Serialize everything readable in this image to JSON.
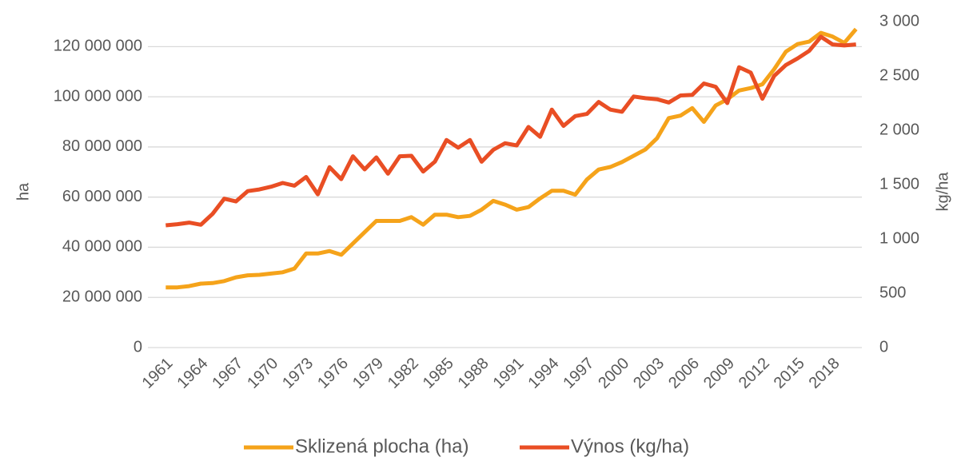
{
  "chart_data": {
    "type": "line",
    "y_label": "ha",
    "y2_label": "kg/ha",
    "categories": [
      "1961",
      null,
      null,
      "1964",
      null,
      null,
      "1967",
      null,
      null,
      "1970",
      null,
      null,
      "1973",
      null,
      null,
      "1976",
      null,
      null,
      "1979",
      null,
      null,
      "1982",
      null,
      null,
      "1985",
      null,
      null,
      "1988",
      null,
      null,
      "1991",
      null,
      null,
      "1994",
      null,
      null,
      "1997",
      null,
      null,
      "2000",
      null,
      null,
      "2003",
      null,
      null,
      "2006",
      null,
      null,
      "2009",
      null,
      null,
      "2012",
      null,
      null,
      "2015",
      null,
      null,
      "2018",
      null,
      null
    ],
    "series": [
      {
        "name": "Sklizená plocha (ha)",
        "color": "#f5a31a",
        "axis": "y",
        "values": [
          24000000,
          24000000,
          24500000,
          25500000,
          25700000,
          26500000,
          28000000,
          28800000,
          29000000,
          29500000,
          30000000,
          31500000,
          37500000,
          37500000,
          38500000,
          37000000,
          41500000,
          46000000,
          50500000,
          50500000,
          50500000,
          52000000,
          49000000,
          53000000,
          53000000,
          52000000,
          52500000,
          55000000,
          58500000,
          57000000,
          55000000,
          56000000,
          59500000,
          62500000,
          62500000,
          61000000,
          67000000,
          71000000,
          72000000,
          74000000,
          76500000,
          79000000,
          83500000,
          91500000,
          92500000,
          95500000,
          90000000,
          96500000,
          99000000,
          102500000,
          103500000,
          105000000,
          111000000,
          118000000,
          121000000,
          122000000,
          125500000,
          124000000,
          121500000,
          127000000
        ]
      },
      {
        "name": "Výnos (kg/ha)",
        "color": "#e94e24",
        "axis": "y2",
        "values": [
          1125,
          1135,
          1150,
          1130,
          1230,
          1370,
          1345,
          1440,
          1455,
          1480,
          1515,
          1490,
          1570,
          1410,
          1660,
          1550,
          1760,
          1640,
          1750,
          1600,
          1760,
          1765,
          1620,
          1710,
          1910,
          1840,
          1910,
          1710,
          1820,
          1880,
          1860,
          2030,
          1940,
          2190,
          2040,
          2130,
          2150,
          2260,
          2190,
          2170,
          2310,
          2295,
          2285,
          2255,
          2320,
          2325,
          2430,
          2400,
          2250,
          2580,
          2530,
          2290,
          2500,
          2600,
          2660,
          2730,
          2860,
          2790,
          2780,
          2790
        ]
      }
    ],
    "ylim": [
      0,
      130000000
    ],
    "yticks": [
      0,
      {
        "value": 20000000,
        "label": "20 000 000"
      },
      {
        "value": 40000000,
        "label": "40 000 000"
      },
      {
        "value": 60000000,
        "label": "60 000 000"
      },
      {
        "value": 80000000,
        "label": "80 000 000"
      },
      {
        "value": 100000000,
        "label": "100 000 000"
      },
      {
        "value": 120000000,
        "label": "120 000 000"
      }
    ],
    "y2lim": [
      0,
      3000
    ],
    "y2ticks": [
      0,
      500,
      {
        "value": 1000,
        "label": "1 000"
      },
      {
        "value": 1500,
        "label": "1 500"
      },
      {
        "value": 2000,
        "label": "2 000"
      },
      {
        "value": 2500,
        "label": "2 500"
      },
      {
        "value": 3000,
        "label": "3 000"
      }
    ],
    "grid": true,
    "legend": "bottom"
  }
}
